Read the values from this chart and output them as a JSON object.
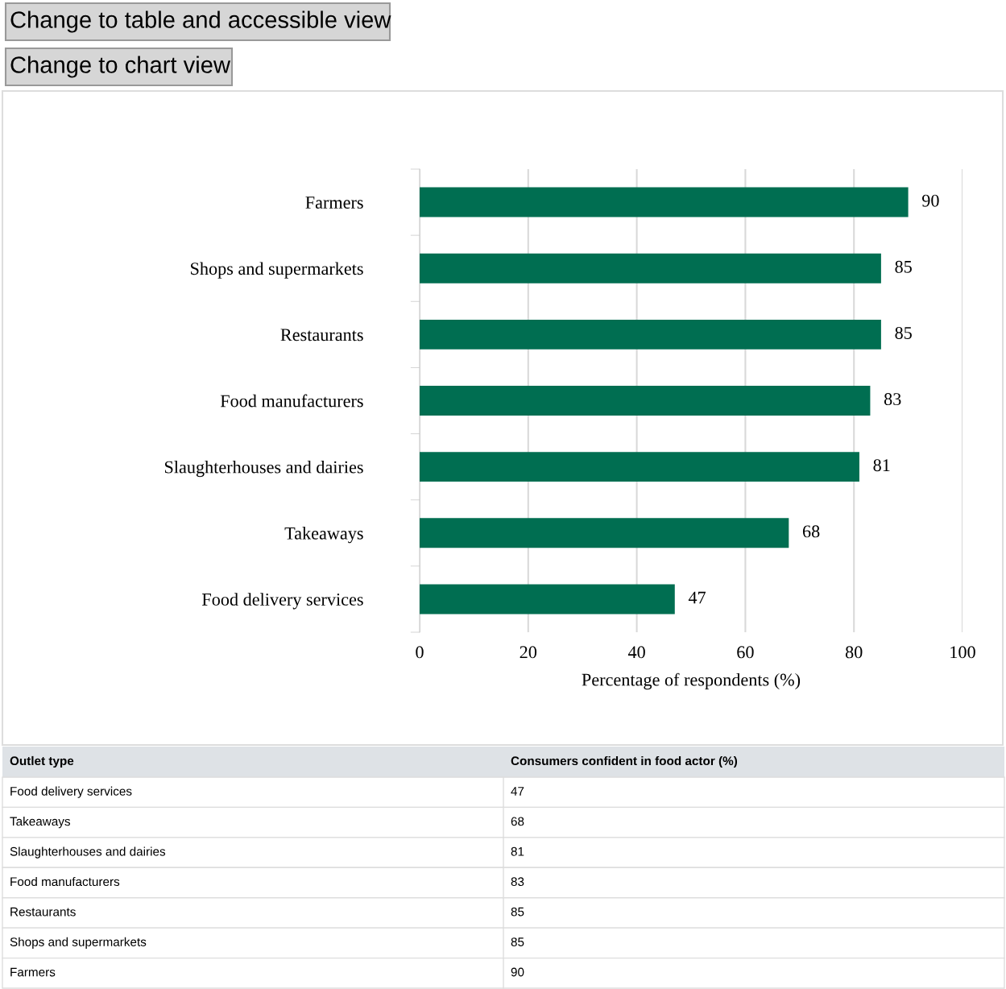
{
  "chart_data": [
    {
      "type": "bar",
      "orientation": "horizontal",
      "xlabel": "Percentage of respondents (%)",
      "categories": [
        "Farmers",
        "Shops and supermarkets",
        "Restaurants",
        "Food manufacturers",
        "Slaughterhouses and dairies",
        "Takeaways",
        "Food delivery services"
      ],
      "values": [
        90,
        85,
        85,
        83,
        81,
        68,
        47
      ],
      "color": "#006e51",
      "xlim": [
        0,
        100
      ],
      "xticks": [
        0,
        20,
        40,
        60,
        80,
        100
      ],
      "grid": "x",
      "data_labels": true,
      "annotations": [
        "Change to table and accessible view",
        "Change to chart view"
      ]
    },
    {
      "type": "other",
      "categories": [
        "Food delivery services",
        "Takeaways",
        "Slaughterhouses and dairies",
        "Food manufacturers",
        "Restaurants",
        "Shops and supermarkets",
        "Farmers"
      ],
      "values": [
        47,
        68,
        81,
        83,
        85,
        85,
        90
      ],
      "data_labels": true,
      "annotations": [
        "Outlet type",
        "Consumers confident in food actor (%)"
      ]
    }
  ]
}
